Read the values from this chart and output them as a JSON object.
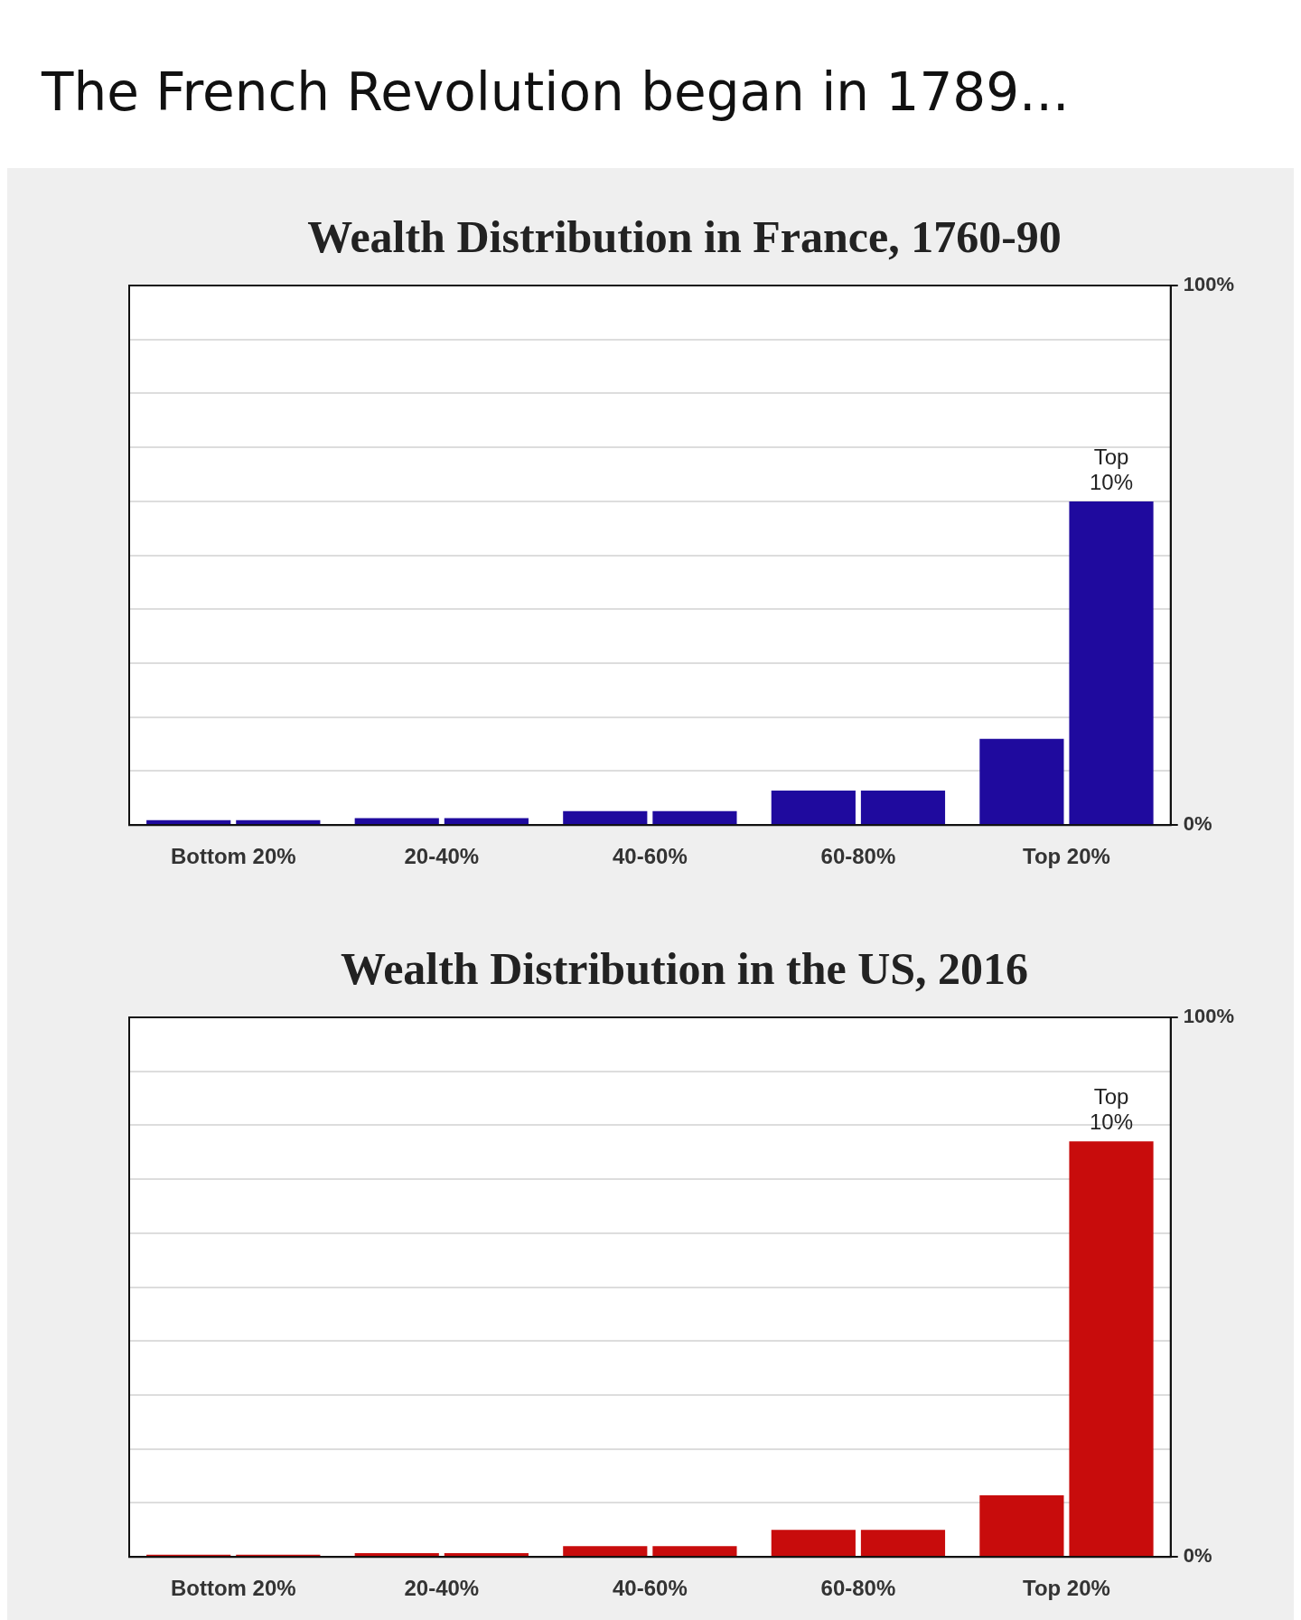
{
  "chart_data": [
    {
      "type": "other",
      "title": "The French Revolution began in 1789..."
    },
    {
      "type": "bar",
      "title": "Wealth Distribution in France, 1760-90",
      "categories": [
        "Bottom 20%",
        "20-40%",
        "40-60%",
        "60-80%",
        "Top 20%"
      ],
      "series": [
        {
          "color": "#1f0a9e",
          "values": [
            0.9,
            1.3,
            2.6,
            6.4,
            16
          ]
        },
        {
          "color": "#1f0a9e",
          "values": [
            0.9,
            1.3,
            2.6,
            6.4,
            60
          ]
        }
      ],
      "ylim": [
        0,
        100
      ],
      "yticks": [
        {
          "value": 0,
          "label": "0%"
        },
        {
          "value": 10,
          "label": null
        },
        {
          "value": 20,
          "label": null
        },
        {
          "value": 30,
          "label": null
        },
        {
          "value": 40,
          "label": null
        },
        {
          "value": 50,
          "label": null
        },
        {
          "value": 60,
          "label": null
        },
        {
          "value": 70,
          "label": null
        },
        {
          "value": 80,
          "label": null
        },
        {
          "value": 90,
          "label": null
        },
        {
          "value": 100,
          "label": "100%"
        }
      ],
      "grid": "y",
      "annotations": [
        {
          "text": "Top 10%",
          "x": "Top 20%",
          "y": 60
        }
      ]
    },
    {
      "type": "bar",
      "title": "Wealth Distribution in the US, 2016",
      "categories": [
        "Bottom 20%",
        "20-40%",
        "40-60%",
        "60-80%",
        "Top 20%"
      ],
      "series": [
        {
          "color": "#c80c0c",
          "values": [
            0.4,
            0.7,
            2,
            5,
            11.4
          ]
        },
        {
          "color": "#c80c0c",
          "values": [
            0.4,
            0.7,
            2,
            5,
            77
          ]
        }
      ],
      "ylim": [
        0,
        100
      ],
      "yticks": [
        {
          "value": 0,
          "label": "0%"
        },
        {
          "value": 10,
          "label": null
        },
        {
          "value": 20,
          "label": null
        },
        {
          "value": 30,
          "label": null
        },
        {
          "value": 40,
          "label": null
        },
        {
          "value": 50,
          "label": null
        },
        {
          "value": 60,
          "label": null
        },
        {
          "value": 70,
          "label": null
        },
        {
          "value": 80,
          "label": null
        },
        {
          "value": 90,
          "label": null
        },
        {
          "value": 100,
          "label": "100%"
        }
      ],
      "grid": "y",
      "annotations": [
        {
          "text": "Top 10%",
          "x": "Top 20%",
          "y": 77
        }
      ]
    }
  ]
}
